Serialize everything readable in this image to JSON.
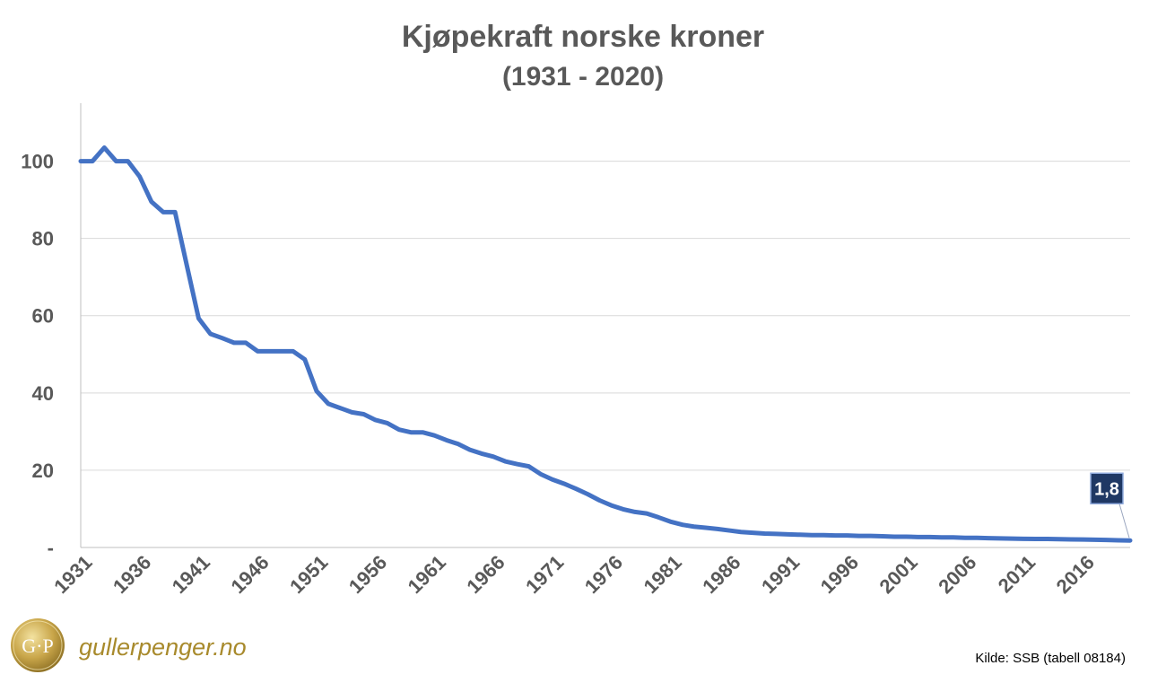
{
  "chart_data": {
    "type": "line",
    "title": "Kjøpekraft norske kroner",
    "subtitle": "(1931 - 2020)",
    "xlabel": "",
    "ylabel": "",
    "ylim": [
      0,
      115
    ],
    "y_ticks": [
      0,
      20,
      40,
      60,
      80,
      100
    ],
    "y_tick_labels": [
      "-",
      "20",
      "40",
      "60",
      "80",
      "100"
    ],
    "x_tick_labels": [
      "1931",
      "1936",
      "1941",
      "1946",
      "1951",
      "1956",
      "1961",
      "1966",
      "1971",
      "1976",
      "1981",
      "1986",
      "1991",
      "1996",
      "2001",
      "2006",
      "2011",
      "2016"
    ],
    "grid": true,
    "color": "#4472c4",
    "series": [
      {
        "x": [
          1931,
          1932,
          1933,
          1934,
          1935,
          1936,
          1937,
          1938,
          1939,
          1940,
          1941,
          1942,
          1943,
          1944,
          1945,
          1946,
          1947,
          1948,
          1949,
          1950,
          1951,
          1952,
          1953,
          1954,
          1955,
          1956,
          1957,
          1958,
          1959,
          1960,
          1961,
          1962,
          1963,
          1964,
          1965,
          1966,
          1967,
          1968,
          1969,
          1970,
          1971,
          1972,
          1973,
          1974,
          1975,
          1976,
          1977,
          1978,
          1979,
          1980,
          1981,
          1982,
          1983,
          1984,
          1985,
          1986,
          1987,
          1988,
          1989,
          1990,
          1991,
          1992,
          1993,
          1994,
          1995,
          1996,
          1997,
          1998,
          1999,
          2000,
          2001,
          2002,
          2003,
          2004,
          2005,
          2006,
          2007,
          2008,
          2009,
          2010,
          2011,
          2012,
          2013,
          2014,
          2015,
          2016,
          2017,
          2018,
          2019,
          2020
        ],
        "values": [
          100,
          100,
          103.5,
          100,
          100,
          96,
          89.5,
          86.8,
          86.8,
          73,
          59.3,
          55.3,
          54.2,
          53,
          53,
          50.8,
          50.8,
          50.8,
          50.8,
          48.7,
          40.5,
          37.2,
          36.1,
          35,
          34.5,
          33,
          32.2,
          30.5,
          29.8,
          29.8,
          29,
          27.8,
          26.8,
          25.3,
          24.3,
          23.5,
          22.3,
          21.6,
          21,
          19,
          17.6,
          16.5,
          15.2,
          13.8,
          12.2,
          10.9,
          9.9,
          9.2,
          8.8,
          7.8,
          6.7,
          5.9,
          5.4,
          5.1,
          4.8,
          4.4,
          4,
          3.8,
          3.6,
          3.5,
          3.4,
          3.3,
          3.2,
          3.2,
          3.1,
          3.1,
          3,
          3,
          2.9,
          2.8,
          2.8,
          2.7,
          2.7,
          2.6,
          2.6,
          2.5,
          2.5,
          2.4,
          2.35,
          2.3,
          2.25,
          2.2,
          2.2,
          2.15,
          2.1,
          2.05,
          2,
          1.95,
          1.85,
          1.8
        ]
      }
    ],
    "data_label": {
      "year": 2020,
      "text": "1,8"
    }
  },
  "logo": {
    "monogram": "G·P",
    "text": "gullerpenger.no"
  },
  "source": "Kilde: SSB (tabell 08184)"
}
